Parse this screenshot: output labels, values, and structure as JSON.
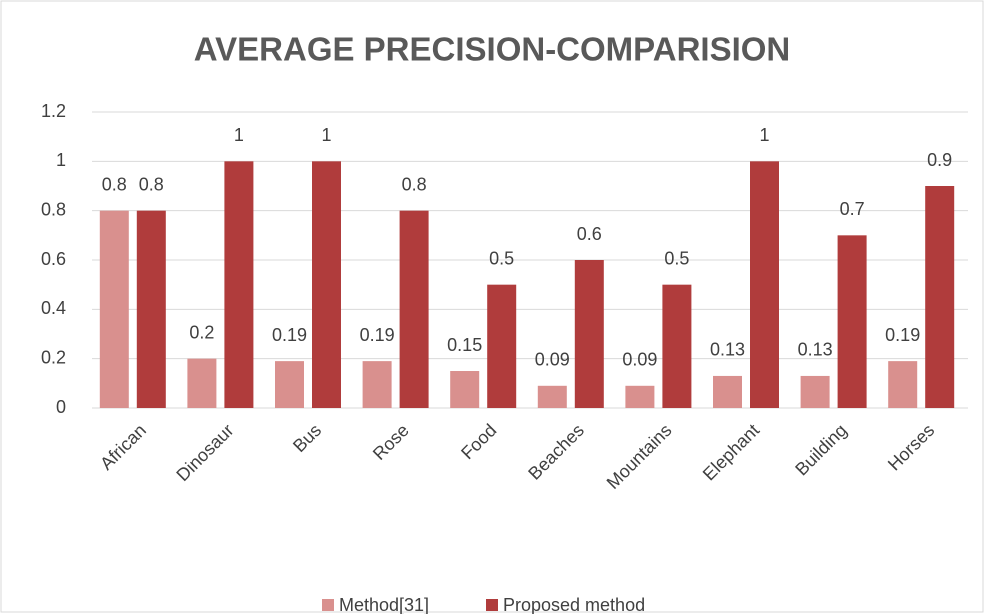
{
  "chart_data": {
    "type": "bar",
    "title": "AVERAGE PRECISION-COMPARISION",
    "categories": [
      "African",
      "Dinosaur",
      "Bus",
      "Rose",
      "Food",
      "Beaches",
      "Mountains",
      "Elephant",
      "Building",
      "Horses"
    ],
    "series": [
      {
        "name": "Method[31]",
        "color": "#d9908e",
        "values": [
          0.8,
          0.2,
          0.19,
          0.19,
          0.15,
          0.09,
          0.09,
          0.13,
          0.13,
          0.19
        ]
      },
      {
        "name": "Proposed method",
        "color": "#b03c3c",
        "values": [
          0.8,
          1,
          1,
          0.8,
          0.5,
          0.6,
          0.5,
          1,
          0.7,
          0.9
        ]
      }
    ],
    "ylim": [
      0,
      1.2
    ],
    "yticks": [
      0,
      0.2,
      0.4,
      0.6,
      0.8,
      1,
      1.2
    ],
    "grid": true,
    "legend": "bottom"
  }
}
